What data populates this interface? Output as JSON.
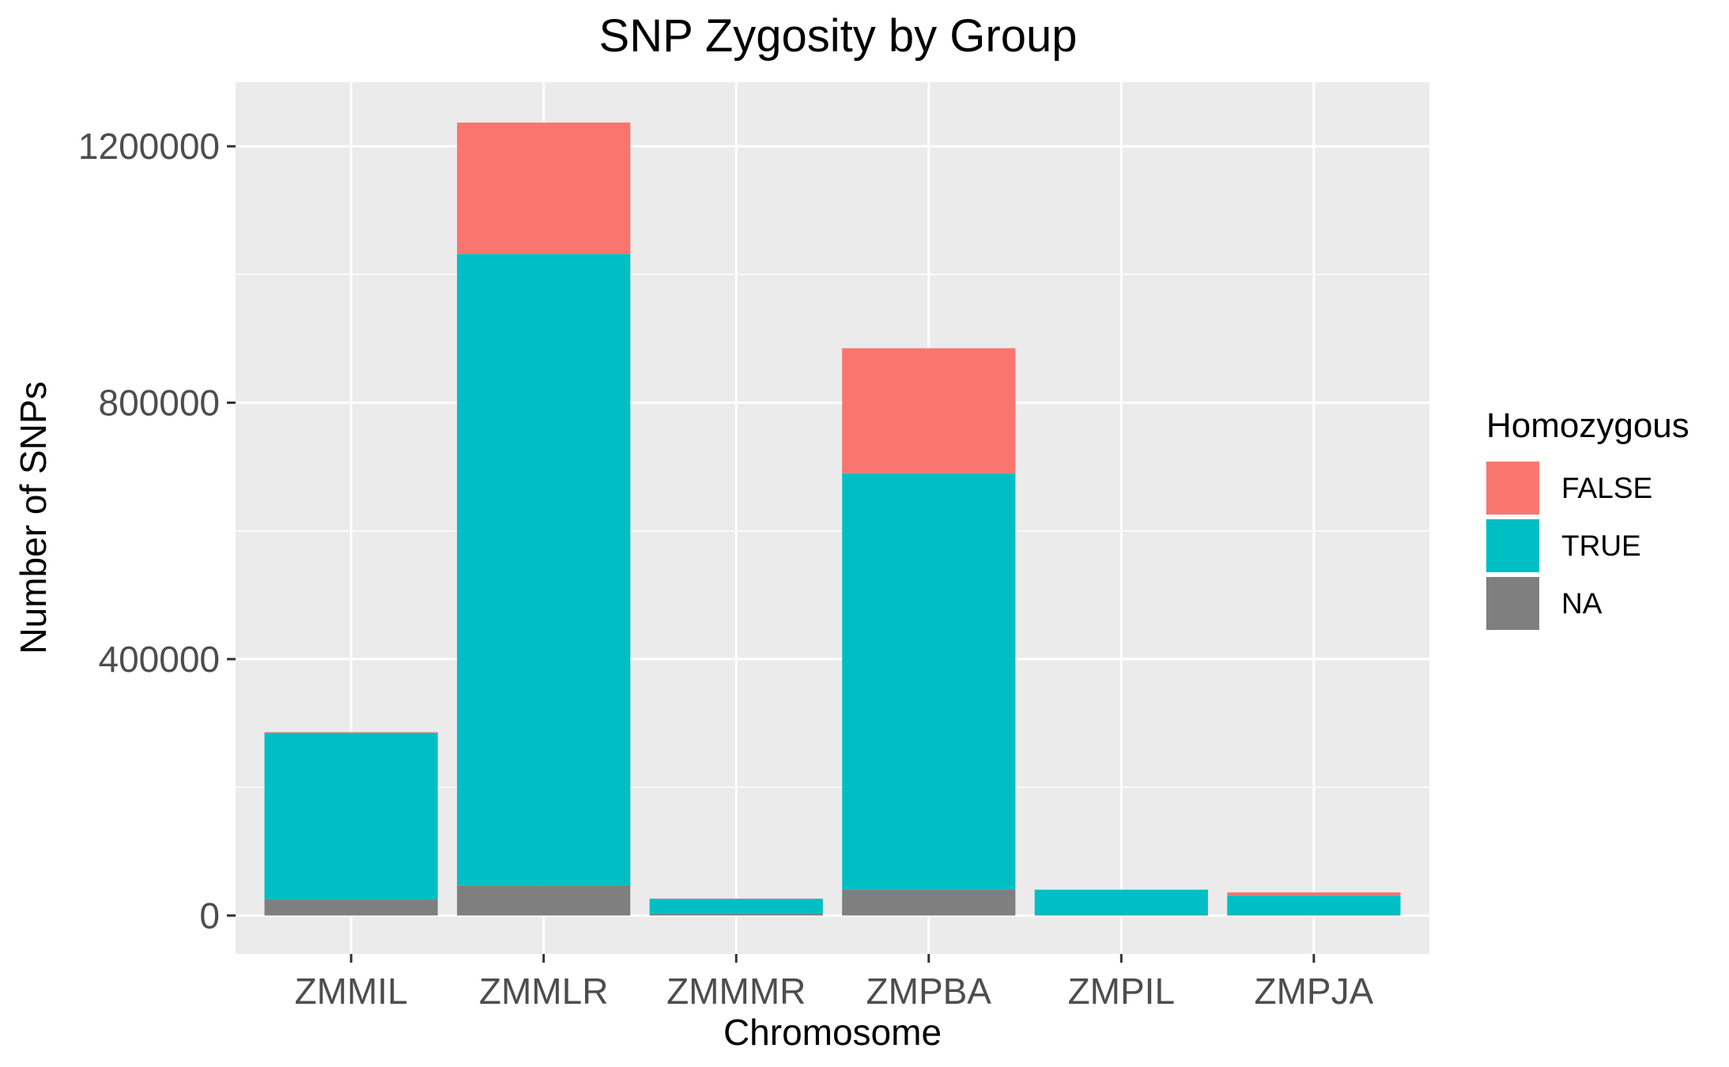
{
  "chart_data": {
    "type": "bar",
    "stacked": true,
    "title": "SNP Zygosity by Group",
    "xlabel": "Chromosome",
    "ylabel": "Number of SNPs",
    "categories": [
      "ZMMIL",
      "ZMMLR",
      "ZMMMR",
      "ZMPBA",
      "ZMPIL",
      "ZMPJA"
    ],
    "ylim": [
      -60000,
      1300000
    ],
    "yticks": [
      0,
      400000,
      800000,
      1200000
    ],
    "ytick_labels": [
      "0",
      "400000",
      "800000",
      "1200000"
    ],
    "grid": true,
    "legend": {
      "title": "Homozygous",
      "position": "right"
    },
    "series": [
      {
        "name": "NA",
        "color": "#7f7f7f",
        "values": [
          25000,
          47000,
          3000,
          40000,
          1000,
          1000
        ]
      },
      {
        "name": "TRUE",
        "color": "#00bfc4",
        "values": [
          260000,
          985000,
          23000,
          650000,
          39000,
          30000
        ]
      },
      {
        "name": "FALSE",
        "color": "#f8766d",
        "values": [
          1000,
          205000,
          500,
          195000,
          500,
          5000
        ]
      }
    ],
    "legend_order": [
      "FALSE",
      "TRUE",
      "NA"
    ]
  }
}
